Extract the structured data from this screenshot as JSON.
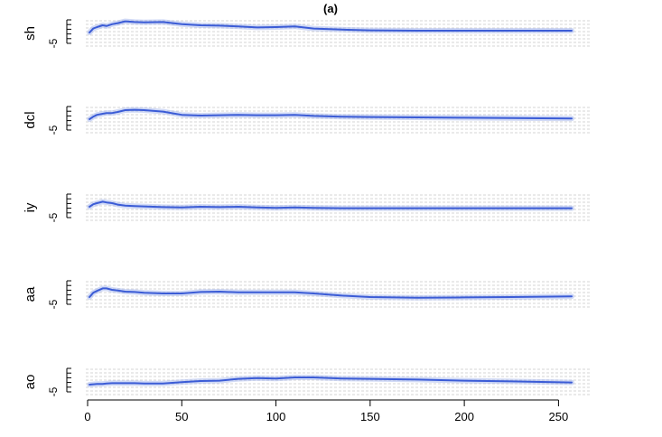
{
  "chart_data": {
    "type": "line",
    "title": "(a)",
    "xlabel": "",
    "xlim": [
      0,
      265
    ],
    "x_ticks": [
      "0",
      "50",
      "100",
      "150",
      "200",
      "250"
    ],
    "grid": true,
    "line_color": "#3b5cd6",
    "grid_color": "#c8c8c8",
    "x": [
      1,
      3,
      5,
      8,
      10,
      13,
      16,
      20,
      25,
      30,
      40,
      50,
      60,
      70,
      80,
      90,
      100,
      110,
      120,
      135,
      150,
      175,
      200,
      225,
      257
    ],
    "panels": [
      {
        "ylabel": "sh",
        "ytick_label": "-5",
        "ylim": [
          -6,
          2
        ],
        "values": [
          -2.0,
          -0.9,
          -0.5,
          0.0,
          -0.2,
          0.3,
          0.6,
          1.1,
          0.9,
          0.8,
          0.9,
          0.3,
          0.0,
          -0.1,
          -0.3,
          -0.6,
          -0.5,
          -0.3,
          -0.9,
          -1.2,
          -1.4,
          -1.5,
          -1.5,
          -1.5,
          -1.5
        ]
      },
      {
        "ylabel": "dcl",
        "ytick_label": "-5",
        "ylim": [
          -6,
          2
        ],
        "values": [
          -2.0,
          -1.3,
          -0.8,
          -0.5,
          -0.3,
          -0.3,
          0.0,
          0.5,
          0.6,
          0.5,
          0.1,
          -0.8,
          -1.0,
          -0.9,
          -0.8,
          -0.9,
          -0.9,
          -0.8,
          -1.1,
          -1.3,
          -1.4,
          -1.5,
          -1.6,
          -1.7,
          -1.8
        ]
      },
      {
        "ylabel": "iy",
        "ytick_label": "-5",
        "ylim": [
          -6,
          2
        ],
        "values": [
          -2.0,
          -1.3,
          -1.0,
          -0.6,
          -0.8,
          -1.0,
          -1.4,
          -1.7,
          -1.8,
          -1.9,
          -2.1,
          -2.2,
          -2.0,
          -2.1,
          -2.0,
          -2.2,
          -2.3,
          -2.2,
          -2.3,
          -2.4,
          -2.4,
          -2.4,
          -2.4,
          -2.4,
          -2.4
        ]
      },
      {
        "ylabel": "aa",
        "ytick_label": "-5",
        "ylim": [
          -6,
          2
        ],
        "values": [
          -3.0,
          -1.8,
          -1.3,
          -0.6,
          -0.6,
          -1.0,
          -1.2,
          -1.5,
          -1.6,
          -1.8,
          -2.0,
          -2.0,
          -1.6,
          -1.5,
          -1.7,
          -1.7,
          -1.7,
          -1.7,
          -2.0,
          -2.6,
          -3.0,
          -3.2,
          -3.1,
          -3.0,
          -2.8
        ]
      },
      {
        "ylabel": "ao",
        "ytick_label": "-5",
        "ylim": [
          -6,
          2
        ],
        "values": [
          -3.0,
          -2.9,
          -2.8,
          -2.8,
          -2.7,
          -2.6,
          -2.6,
          -2.6,
          -2.6,
          -2.7,
          -2.7,
          -2.3,
          -2.0,
          -1.9,
          -1.4,
          -1.2,
          -1.3,
          -1.0,
          -1.0,
          -1.3,
          -1.4,
          -1.6,
          -1.9,
          -2.1,
          -2.4
        ]
      }
    ]
  }
}
